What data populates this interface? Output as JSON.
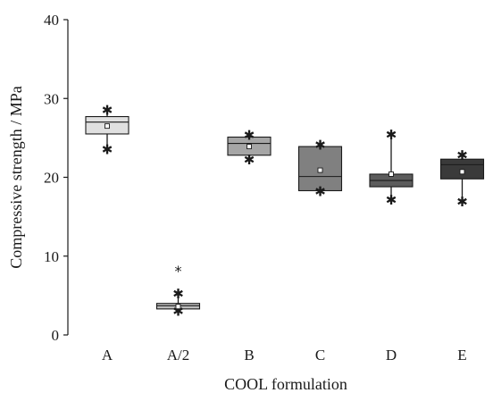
{
  "chart_data": {
    "type": "box",
    "xlabel": "COOL formulation",
    "ylabel": "Compressive strength / MPa",
    "ylim": [
      0,
      40
    ],
    "yticks": [
      0,
      10,
      20,
      30,
      40
    ],
    "categories": [
      "A",
      "A/2",
      "B",
      "C",
      "D",
      "E"
    ],
    "boxes": [
      {
        "category": "A",
        "min": 23.5,
        "q1": 25.5,
        "median": 27.0,
        "q3": 27.7,
        "max": 28.5,
        "mean": 26.5,
        "outliers": [],
        "fill": "#e0e0e0"
      },
      {
        "category": "A/2",
        "min": 3.0,
        "q1": 3.3,
        "median": 3.7,
        "q3": 4.0,
        "max": 5.2,
        "mean": 3.6,
        "outliers": [
          8.3
        ],
        "fill": "#bdbdbd"
      },
      {
        "category": "B",
        "min": 22.2,
        "q1": 22.8,
        "median": 24.3,
        "q3": 25.1,
        "max": 25.3,
        "mean": 23.9,
        "outliers": [],
        "fill": "#a6a6a6"
      },
      {
        "category": "C",
        "min": 18.2,
        "q1": 18.3,
        "median": 20.1,
        "q3": 23.9,
        "max": 24.1,
        "mean": 20.9,
        "outliers": [],
        "fill": "#808080"
      },
      {
        "category": "D",
        "min": 17.1,
        "q1": 18.8,
        "median": 19.6,
        "q3": 20.4,
        "max": 25.4,
        "mean": 20.4,
        "outliers": [],
        "fill": "#5c5c5c"
      },
      {
        "category": "E",
        "min": 16.9,
        "q1": 19.8,
        "median": 21.6,
        "q3": 22.3,
        "max": 22.8,
        "mean": 20.7,
        "outliers": [],
        "fill": "#3a3a3a"
      }
    ],
    "grid": false,
    "legend": "none"
  }
}
